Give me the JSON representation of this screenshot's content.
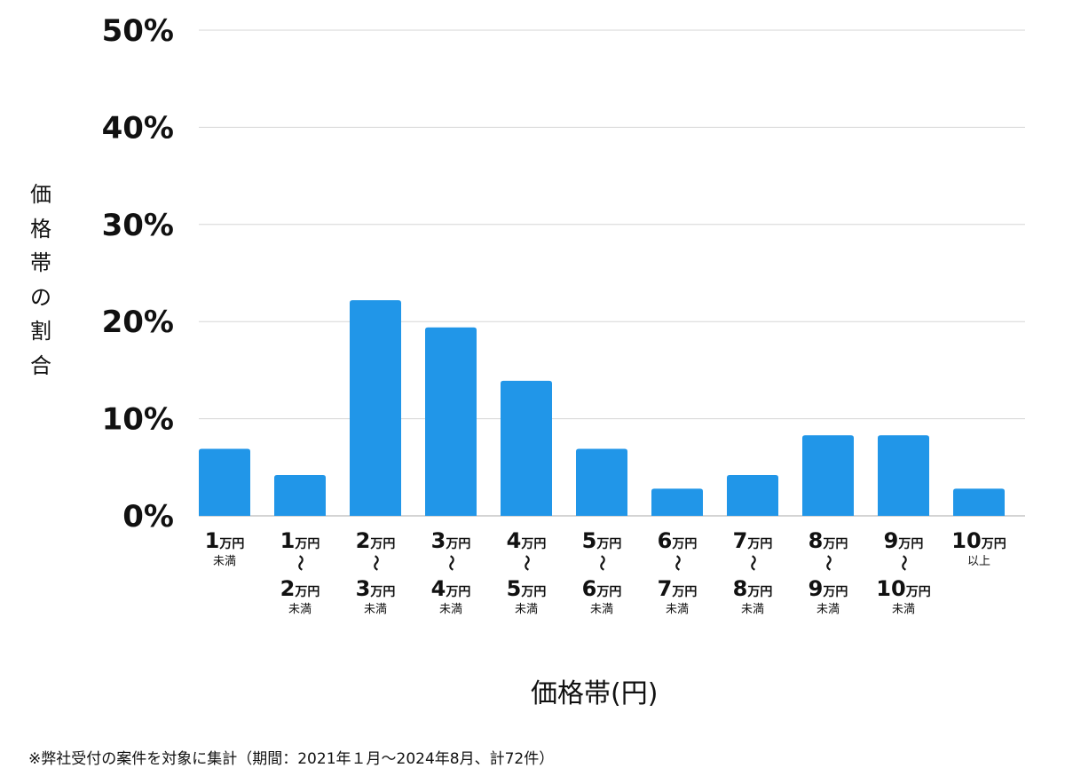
{
  "chart_data": {
    "type": "bar",
    "title": "",
    "xlabel": "価格帯(円)",
    "ylabel": "価格帯の割合",
    "ylim": [
      0,
      50
    ],
    "yticks": [
      "0%",
      "10%",
      "20%",
      "30%",
      "40%",
      "50%"
    ],
    "ytick_values": [
      0,
      10,
      20,
      30,
      40,
      50
    ],
    "grid": true,
    "bar_color": "#2196e8",
    "categories": [
      {
        "from": "1万円",
        "to": null,
        "note": "未満"
      },
      {
        "from": "1万円",
        "to": "2万円",
        "note": "未満"
      },
      {
        "from": "2万円",
        "to": "3万円",
        "note": "未満"
      },
      {
        "from": "3万円",
        "to": "4万円",
        "note": "未満"
      },
      {
        "from": "4万円",
        "to": "5万円",
        "note": "未満"
      },
      {
        "from": "5万円",
        "to": "6万円",
        "note": "未満"
      },
      {
        "from": "6万円",
        "to": "7万円",
        "note": "未満"
      },
      {
        "from": "7万円",
        "to": "8万円",
        "note": "未満"
      },
      {
        "from": "8万円",
        "to": "9万円",
        "note": "未満"
      },
      {
        "from": "9万円",
        "to": "10万円",
        "note": "未満"
      },
      {
        "from": "10万円",
        "to": null,
        "note": "以上"
      }
    ],
    "range_mark": "〜",
    "values": [
      6.9,
      4.2,
      22.2,
      19.4,
      13.9,
      6.9,
      2.8,
      4.2,
      8.3,
      8.3,
      2.8
    ]
  },
  "footnote": "※弊社受付の案件を対象に集計（期間：2021年１月〜2024年8月、計72件）"
}
